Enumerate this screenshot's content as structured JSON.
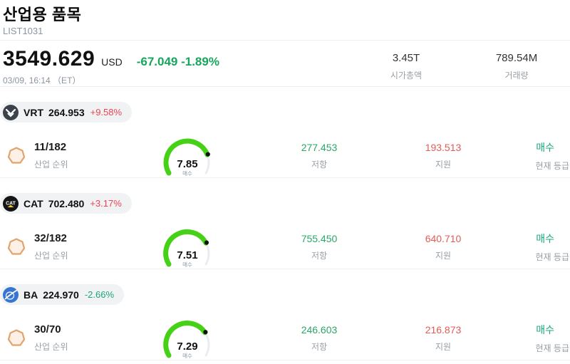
{
  "header": {
    "title": "산업용 품목",
    "subtitle": "LIST1031"
  },
  "quote": {
    "price": "3549.629",
    "currency": "USD",
    "change": "-67.049 -1.89%",
    "change_color": "#18a55c",
    "datetime": "03/09, 16:14 （ET）",
    "stats": [
      {
        "value": "3.45T",
        "label": "시가총액"
      },
      {
        "value": "789.54M",
        "label": "거래량"
      }
    ]
  },
  "colors": {
    "resistance": "#2aa767",
    "support": "#e25b57",
    "grade": "#1aa87e",
    "gauge_arc": "#44d116",
    "gauge_rest": "#e9edf0"
  },
  "stocks": [
    {
      "ticker": "VRT",
      "price": "264.953",
      "change": "+9.58%",
      "change_color": "#ee4450",
      "logo": "vrt-logo",
      "rank": "11/182",
      "rank_label": "산업 순위",
      "gauge_value": 7.85,
      "gauge_display": "7.85",
      "gauge_label": "매수",
      "resistance": "277.453",
      "resistance_label": "저항",
      "support": "193.513",
      "support_label": "지원",
      "grade": "매수",
      "grade_label": "현재 등급"
    },
    {
      "ticker": "CAT",
      "price": "702.480",
      "change": "+3.17%",
      "change_color": "#ee4450",
      "logo": "cat-logo",
      "rank": "32/182",
      "rank_label": "산업 순위",
      "gauge_value": 7.51,
      "gauge_display": "7.51",
      "gauge_label": "매수",
      "resistance": "755.450",
      "resistance_label": "저항",
      "support": "640.710",
      "support_label": "지원",
      "grade": "매수",
      "grade_label": "현재 등급"
    },
    {
      "ticker": "BA",
      "price": "224.970",
      "change": "-2.66%",
      "change_color": "#1ca673",
      "logo": "ba-logo",
      "rank": "30/70",
      "rank_label": "산업 순위",
      "gauge_value": 7.29,
      "gauge_display": "7.29",
      "gauge_label": "매수",
      "resistance": "246.603",
      "resistance_label": "저항",
      "support": "216.873",
      "support_label": "지원",
      "grade": "매수",
      "grade_label": "현재 등급"
    }
  ]
}
